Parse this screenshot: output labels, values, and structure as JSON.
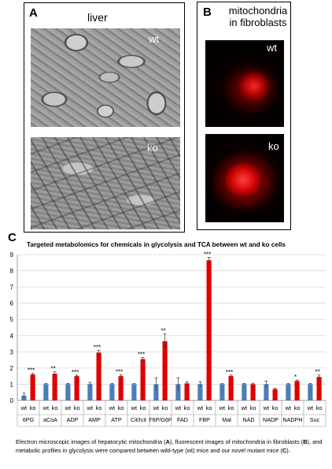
{
  "panel_a": {
    "label": "A",
    "title": "liver",
    "top_tag": "wt",
    "bottom_tag": "ko"
  },
  "panel_b": {
    "label": "B",
    "title_line1": "mitochondria",
    "title_line2": "in fibroblasts",
    "top_tag": "wt",
    "bottom_tag": "ko"
  },
  "panel_c": {
    "label": "C"
  },
  "chart_data": {
    "type": "bar",
    "title": "Targeted metabolomics for chemicals in glycolysis and TCA between wt and ko cells",
    "ylim": [
      0,
      9
    ],
    "yticks": [
      0,
      1,
      2,
      3,
      4,
      5,
      6,
      7,
      8,
      9
    ],
    "grid": true,
    "groups": [
      "6PG",
      "aCoA",
      "ADP",
      "AMP",
      "ATP",
      "Cit/Icit",
      "F6P/G6P",
      "FAD",
      "FBP",
      "Mal",
      "NAD",
      "NADP",
      "NADPH",
      "Suc"
    ],
    "bar_labels": [
      "wt",
      "ko"
    ],
    "series": [
      {
        "color": "#4a7ebb",
        "values": [
          0.3,
          1.0,
          1.0,
          1.0,
          1.0,
          1.0,
          1.0,
          1.0,
          1.0,
          1.0,
          1.0,
          1.0,
          1.0,
          1.0
        ],
        "errors": [
          0.15,
          0.04,
          0.05,
          0.12,
          0.05,
          0.04,
          0.4,
          0.4,
          0.15,
          0.04,
          0.05,
          0.2,
          0.04,
          0.05
        ]
      },
      {
        "color": "#e00000",
        "values": [
          1.6,
          1.65,
          1.5,
          2.95,
          1.5,
          2.55,
          3.65,
          1.05,
          8.65,
          1.5,
          1.0,
          0.7,
          1.2,
          1.45
        ],
        "errors": [
          0.08,
          0.12,
          0.06,
          0.15,
          0.08,
          0.1,
          0.45,
          0.1,
          0.18,
          0.06,
          0.06,
          0.05,
          0.06,
          0.12
        ]
      }
    ],
    "significance": [
      "***",
      "**",
      "***",
      "***",
      "***",
      "***",
      "**",
      "",
      "***",
      "***",
      "",
      "",
      "*",
      "**"
    ]
  },
  "caption": {
    "part1": "Electron microscopic images of hepatocytic mitochondria (",
    "a": "A",
    "part2": "), fluorescent images of mitochondria in fibroblasts (",
    "b": "B",
    "part3": "), and metabolic profiles in glycolysis were compared between wild-type (wt) mice and our novel mutant mice (",
    "c": "C",
    "part4": ")."
  }
}
